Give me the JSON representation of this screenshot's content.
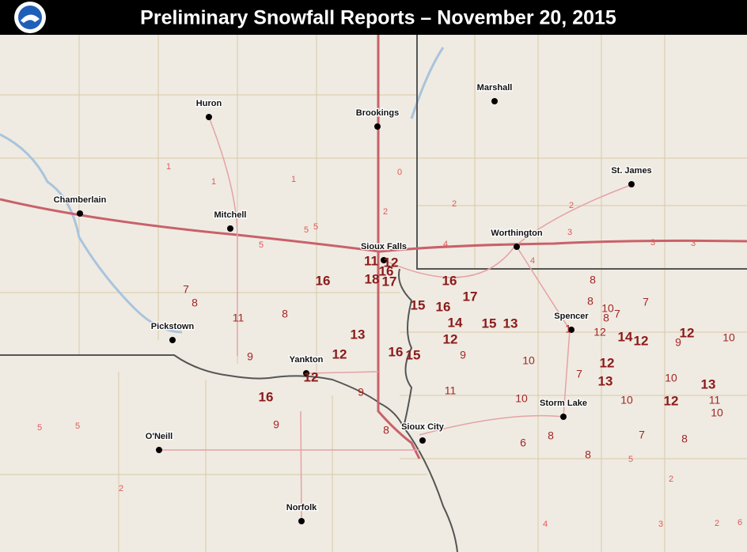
{
  "header": {
    "title": "Preliminary Snowfall Reports – November 20, 2015"
  },
  "cities": [
    "Huron",
    "Brookings",
    "Marshall",
    "St. James",
    "Chamberlain",
    "Mitchell",
    "Sioux Falls",
    "Worthington",
    "Pickstown",
    "Yankton",
    "Spencer",
    "Storm Lake",
    "O'Neill",
    "Sioux City",
    "Norfolk"
  ],
  "reports": {
    "major": [
      16,
      18,
      17,
      16,
      17,
      15,
      16,
      14,
      15,
      13,
      13,
      12,
      16,
      15,
      12,
      12,
      16,
      14,
      12,
      12,
      12,
      13,
      12,
      13,
      11,
      12,
      16
    ],
    "moderate": [
      7,
      8,
      11,
      8,
      9,
      9,
      9,
      8,
      11,
      9,
      10,
      10,
      6,
      8,
      8,
      7,
      10,
      8,
      8,
      10,
      7,
      8,
      7,
      12,
      9,
      10,
      10,
      11,
      10,
      7,
      8,
      1
    ],
    "minor": [
      5,
      5,
      5,
      1,
      1,
      1,
      0,
      2,
      2,
      4,
      4,
      3,
      3,
      3,
      2,
      5,
      2,
      4,
      3,
      2,
      2,
      6,
      5,
      5
    ]
  }
}
